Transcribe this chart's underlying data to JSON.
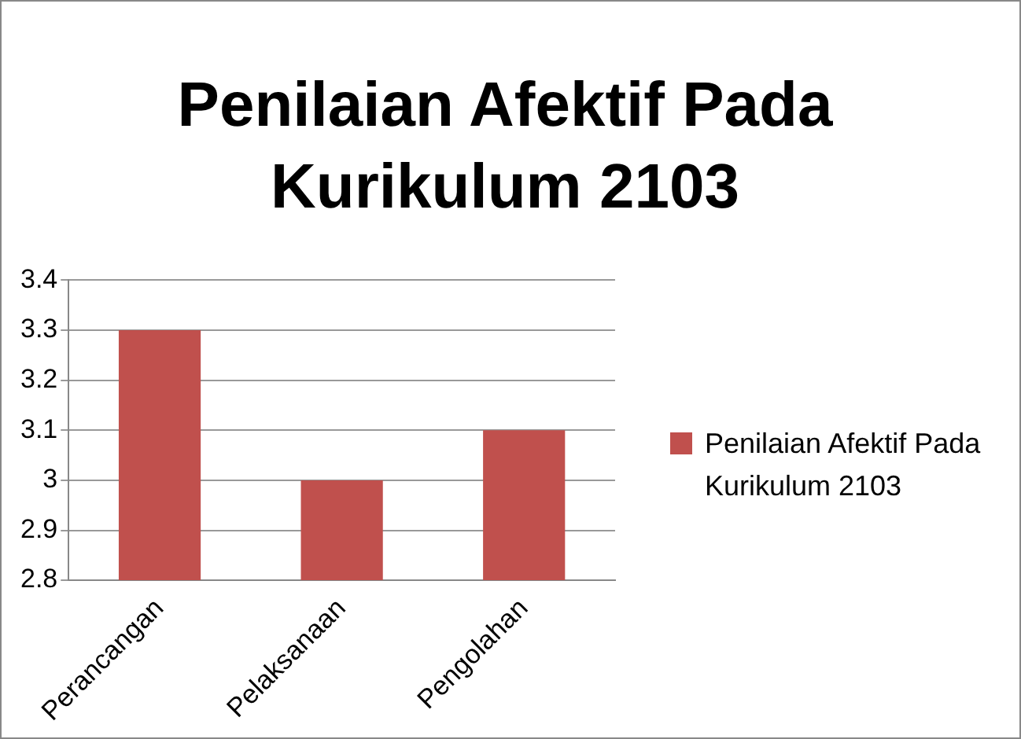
{
  "chart_data": {
    "type": "bar",
    "title": "Penilaian Afektif Pada Kurikulum 2103",
    "categories": [
      "Perancangan",
      "Pelaksanaan",
      "Pengolahan"
    ],
    "series": [
      {
        "name": "Penilaian Afektif Pada Kurikulum 2103",
        "color": "#c0504d",
        "values": [
          3.3,
          3.0,
          3.1
        ]
      }
    ],
    "ylim": [
      2.8,
      3.4
    ],
    "yticks": [
      2.8,
      2.9,
      3,
      3.1,
      3.2,
      3.3,
      3.4
    ],
    "grid": "y",
    "legend": "right"
  }
}
